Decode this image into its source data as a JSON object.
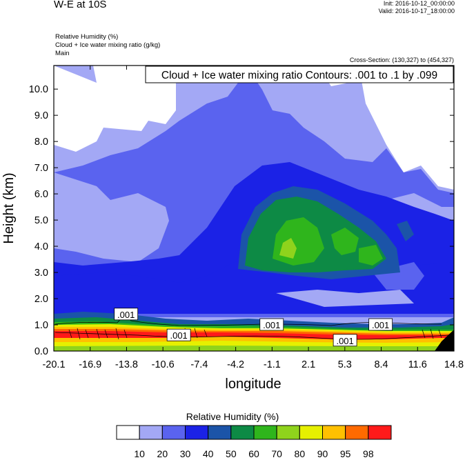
{
  "header": {
    "title": "W-E at 10S",
    "init": "Init: 2016-10-12_00:00:00",
    "valid": "Valid: 2016-10-17_18:00:00",
    "fields": [
      "Relative Humidity   (%)",
      "Cloud + Ice water mixing ratio   (g/kg)",
      "Main"
    ],
    "cross_section": "Cross-Section: (130,327) to (454,327)"
  },
  "chart_data": {
    "type": "heatmap",
    "title": "Cloud + Ice water mixing ratio Contours: .001 to .1 by .099",
    "xlabel": "longitude",
    "ylabel": "Height (km)",
    "xticks": [
      "-20.1",
      "-16.9",
      "-13.8",
      "-10.6",
      "-7.4",
      "-4.2",
      "-1.1",
      "2.1",
      "5.3",
      "8.4",
      "11.6",
      "14.8"
    ],
    "yticks": [
      "0.0",
      "1.0",
      "2.0",
      "3.0",
      "4.0",
      "5.0",
      "6.0",
      "7.0",
      "8.0",
      "9.0",
      "10.0"
    ],
    "xlim": [
      -20.1,
      14.8
    ],
    "ylim": [
      0,
      10.9
    ],
    "contour_labels": [
      {
        "text": ".001",
        "x": -13.8,
        "y": 1.4
      },
      {
        "text": ".001",
        "x": -9.2,
        "y": 0.6
      },
      {
        "text": ".001",
        "x": -1.1,
        "y": 1.0
      },
      {
        "text": ".001",
        "x": 5.3,
        "y": 0.4
      },
      {
        "text": ".001",
        "x": 8.4,
        "y": 1.0
      }
    ],
    "colorbar": {
      "title": "Relative Humidity  (%)",
      "levels": [
        "10",
        "20",
        "30",
        "40",
        "50",
        "60",
        "70",
        "80",
        "90",
        "95",
        "98"
      ],
      "colors": [
        "#ffffff",
        "#a3a8f5",
        "#5a63ef",
        "#1b22e6",
        "#1b54a8",
        "#0d8a45",
        "#2fb51c",
        "#8fd31c",
        "#e6f000",
        "#ffc000",
        "#ff6a00",
        "#ff1a1a"
      ]
    }
  }
}
